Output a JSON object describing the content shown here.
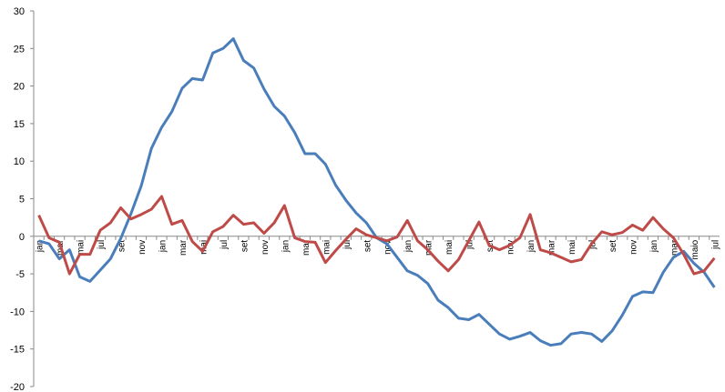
{
  "chart_data": {
    "type": "line",
    "categories": [
      "jan",
      null,
      "mar",
      null,
      "mai",
      null,
      "jul",
      null,
      "set",
      null,
      "nov",
      null,
      "jan",
      null,
      "mar",
      null,
      "mai",
      null,
      "jul",
      null,
      "set",
      null,
      "nov",
      null,
      "jan",
      null,
      "mar",
      null,
      "mai",
      null,
      "jul",
      null,
      "set",
      null,
      "nov",
      null,
      "jan",
      null,
      "mar",
      null,
      "mai",
      null,
      "jul",
      null,
      "set",
      null,
      "nov",
      null,
      "jan",
      null,
      "mar",
      null,
      "mai",
      null,
      "jul",
      null,
      "set",
      null,
      "nov",
      null,
      "jan",
      null,
      "mar",
      null,
      "maio",
      null,
      "jul"
    ],
    "series": [
      {
        "color": "#4a7ebb",
        "values": [
          -0.6,
          -1,
          -3,
          -1.8,
          -5.4,
          -6,
          -4.5,
          -3,
          -0.3,
          3,
          6.7,
          11.7,
          14.5,
          16.6,
          19.7,
          21,
          20.8,
          24.4,
          25,
          26.3,
          23.4,
          22.4,
          19.6,
          17.3,
          16,
          13.8,
          11,
          11,
          9.6,
          6.8,
          4.8,
          3.1,
          1.8,
          -0.2,
          -1,
          -2.8,
          -4.6,
          -5.2,
          -6.3,
          -8.5,
          -9.5,
          -10.9,
          -11.1,
          -10.4,
          -11.7,
          -13,
          -13.7,
          -13.3,
          -12.8,
          -13.9,
          -14.5,
          -14.3,
          -13,
          -12.8,
          -13,
          -14,
          -12.6,
          -10.5,
          -8,
          -7.4,
          -7.5,
          -4.8,
          -2.8,
          -2,
          -3.6,
          -4.8,
          -6.8
        ]
      },
      {
        "color": "#be4b48",
        "values": [
          2.8,
          -0.2,
          -0.8,
          -5,
          -2.4,
          -2.4,
          0.8,
          1.8,
          3.8,
          2.3,
          2.9,
          3.6,
          5.3,
          1.6,
          2.1,
          -0.7,
          -2,
          0.6,
          1.3,
          2.8,
          1.6,
          1.8,
          0.4,
          1.8,
          4.1,
          -0.2,
          -0.7,
          -0.8,
          -3.5,
          -1.9,
          -0.4,
          1,
          0.2,
          -0.2,
          -0.6,
          -0.1,
          2.1,
          -0.6,
          -1.8,
          -3.3,
          -4.6,
          -3.1,
          -0.6,
          1.9,
          -1.2,
          -1.8,
          -1.2,
          -0.2,
          2.9,
          -1.8,
          -2.2,
          -2.8,
          -3.4,
          -3.1,
          -1,
          0.6,
          0.2,
          0.5,
          1.5,
          0.8,
          2.5,
          1,
          -0.2,
          -2.4,
          -5,
          -4.6,
          -2.9
        ]
      }
    ],
    "ylim": [
      -20,
      30
    ],
    "yticks": [
      -20,
      -15,
      -10,
      -5,
      0,
      5,
      10,
      15,
      20,
      25,
      30
    ],
    "grid": false
  }
}
